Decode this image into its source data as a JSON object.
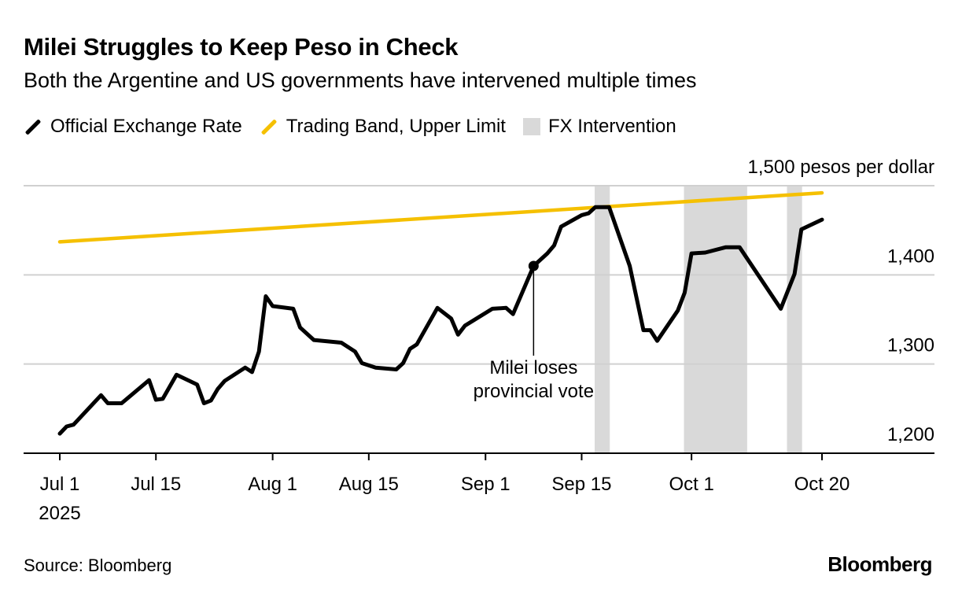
{
  "title": "Milei Struggles to Keep Peso in Check",
  "subtitle": "Both the Argentine and US governments have intervened multiple times",
  "legend": [
    {
      "label": "Official Exchange Rate",
      "color": "#000000",
      "kind": "line"
    },
    {
      "label": "Trading Band, Upper Limit",
      "color": "#f5c000",
      "kind": "line"
    },
    {
      "label": "FX Intervention",
      "color": "#d9d9d9",
      "kind": "box"
    }
  ],
  "source": "Source: Bloomberg",
  "logo": "Bloomberg",
  "chart_data": {
    "type": "line",
    "ylabel": "pesos per dollar",
    "ylim": [
      1200,
      1500
    ],
    "yticks": [
      {
        "value": 1500,
        "label": "1,500 pesos per dollar"
      },
      {
        "value": 1400,
        "label": "1,400"
      },
      {
        "value": 1300,
        "label": "1,300"
      },
      {
        "value": 1200,
        "label": "1,200"
      }
    ],
    "xlim": [
      "2025-07-01",
      "2025-10-20"
    ],
    "xticks": [
      {
        "date": "2025-07-01",
        "label": "Jul 1",
        "sublabel": "2025"
      },
      {
        "date": "2025-07-15",
        "label": "Jul 15"
      },
      {
        "date": "2025-08-01",
        "label": "Aug 1"
      },
      {
        "date": "2025-08-15",
        "label": "Aug 15"
      },
      {
        "date": "2025-09-01",
        "label": "Sep 1"
      },
      {
        "date": "2025-09-15",
        "label": "Sep 15"
      },
      {
        "date": "2025-10-01",
        "label": "Oct 1"
      },
      {
        "date": "2025-10-20",
        "label": "Oct 20"
      }
    ],
    "grid": true,
    "legend_position": "top-left",
    "series": [
      {
        "name": "Official Exchange Rate",
        "color": "#000000",
        "points": [
          [
            "2025-07-01",
            1222
          ],
          [
            "2025-07-02",
            1230
          ],
          [
            "2025-07-03",
            1232
          ],
          [
            "2025-07-07",
            1265
          ],
          [
            "2025-07-08",
            1256
          ],
          [
            "2025-07-10",
            1256
          ],
          [
            "2025-07-14",
            1282
          ],
          [
            "2025-07-15",
            1260
          ],
          [
            "2025-07-16",
            1261
          ],
          [
            "2025-07-18",
            1288
          ],
          [
            "2025-07-21",
            1277
          ],
          [
            "2025-07-22",
            1256
          ],
          [
            "2025-07-23",
            1259
          ],
          [
            "2025-07-24",
            1272
          ],
          [
            "2025-07-25",
            1281
          ],
          [
            "2025-07-28",
            1296
          ],
          [
            "2025-07-29",
            1291
          ],
          [
            "2025-07-30",
            1314
          ],
          [
            "2025-07-31",
            1376
          ],
          [
            "2025-08-01",
            1365
          ],
          [
            "2025-08-04",
            1362
          ],
          [
            "2025-08-05",
            1341
          ],
          [
            "2025-08-07",
            1327
          ],
          [
            "2025-08-11",
            1324
          ],
          [
            "2025-08-13",
            1314
          ],
          [
            "2025-08-14",
            1301
          ],
          [
            "2025-08-16",
            1296
          ],
          [
            "2025-08-19",
            1294
          ],
          [
            "2025-08-20",
            1301
          ],
          [
            "2025-08-21",
            1317
          ],
          [
            "2025-08-22",
            1322
          ],
          [
            "2025-08-25",
            1363
          ],
          [
            "2025-08-27",
            1351
          ],
          [
            "2025-08-28",
            1333
          ],
          [
            "2025-08-29",
            1343
          ],
          [
            "2025-09-02",
            1362
          ],
          [
            "2025-09-04",
            1363
          ],
          [
            "2025-09-05",
            1356
          ],
          [
            "2025-09-08",
            1410
          ],
          [
            "2025-09-10",
            1424
          ],
          [
            "2025-09-11",
            1433
          ],
          [
            "2025-09-12",
            1454
          ],
          [
            "2025-09-15",
            1467
          ],
          [
            "2025-09-16",
            1469
          ],
          [
            "2025-09-17",
            1476
          ],
          [
            "2025-09-19",
            1476
          ],
          [
            "2025-09-22",
            1410
          ],
          [
            "2025-09-24",
            1338
          ],
          [
            "2025-09-25",
            1338
          ],
          [
            "2025-09-26",
            1326
          ],
          [
            "2025-09-29",
            1360
          ],
          [
            "2025-09-30",
            1380
          ],
          [
            "2025-10-01",
            1424
          ],
          [
            "2025-10-03",
            1425
          ],
          [
            "2025-10-06",
            1431
          ],
          [
            "2025-10-08",
            1431
          ],
          [
            "2025-10-14",
            1362
          ],
          [
            "2025-10-16",
            1401
          ],
          [
            "2025-10-17",
            1451
          ],
          [
            "2025-10-20",
            1462
          ]
        ]
      },
      {
        "name": "Trading Band, Upper Limit",
        "color": "#f5c000",
        "points": [
          [
            "2025-07-01",
            1437
          ],
          [
            "2025-10-20",
            1492
          ]
        ]
      }
    ],
    "shaded_ranges": [
      {
        "name": "FX Intervention",
        "start": "2025-09-17",
        "end": "2025-09-19"
      },
      {
        "name": "FX Intervention",
        "start": "2025-09-30",
        "end": "2025-10-09"
      },
      {
        "name": "FX Intervention",
        "start": "2025-10-15",
        "end": "2025-10-17"
      }
    ],
    "annotations": [
      {
        "date": "2025-09-08",
        "value": 1410,
        "text_lines": [
          "Milei loses",
          "provincial vote"
        ]
      }
    ]
  }
}
